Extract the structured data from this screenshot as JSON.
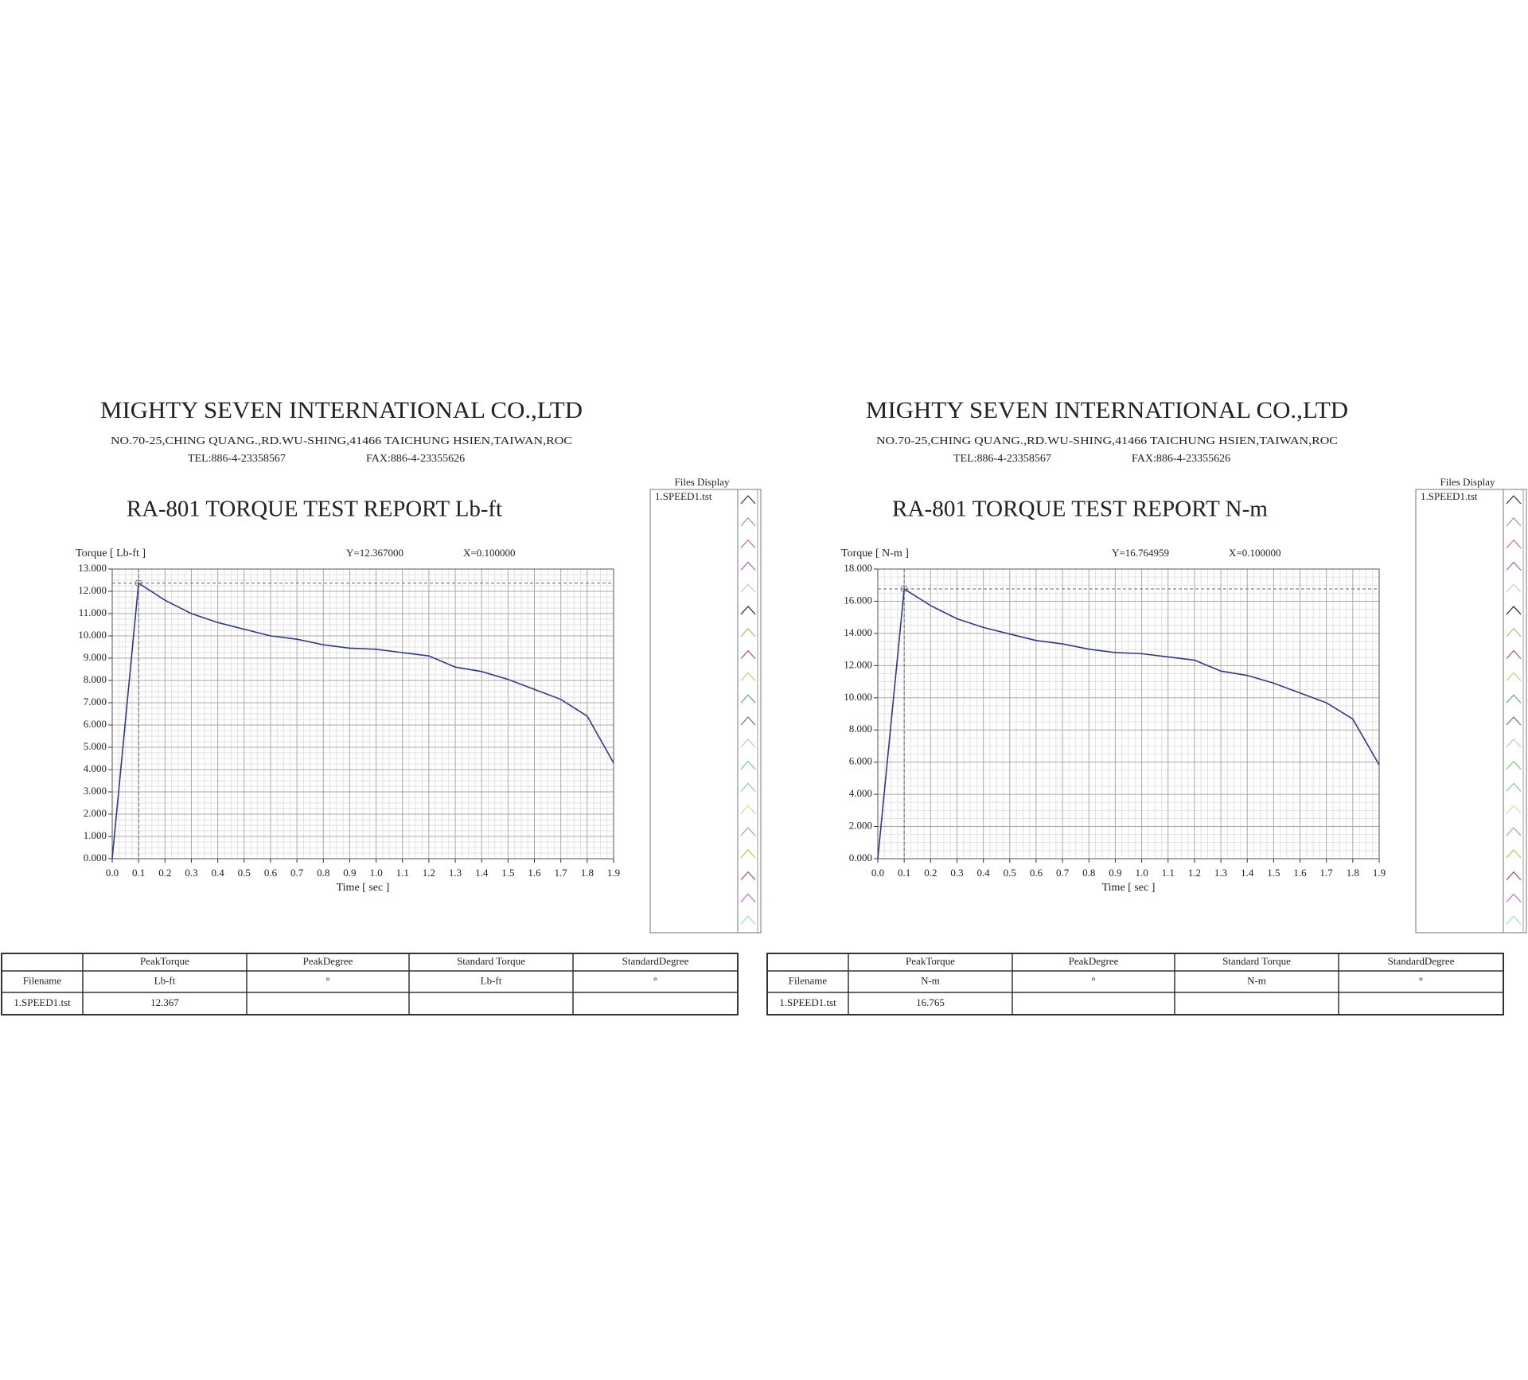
{
  "reports": [
    {
      "company": "MIGHTY SEVEN INTERNATIONAL CO.,LTD",
      "address": "NO.70-25,CHING QUANG.,RD.WU-SHING,41466 TAICHUNG HSIEN,TAIWAN,ROC",
      "tel": "TEL:886-4-23358567",
      "fax": "FAX:886-4-23355626",
      "files_display": "Files Display",
      "table": {
        "columns": [
          "PeakTorque",
          "PeakDegree",
          "Standard Torque",
          "StandardDegree"
        ],
        "row_header": "Filename",
        "units": [
          "Lb-ft",
          "°",
          "Lb-ft",
          "°"
        ],
        "rows": [
          {
            "file": "1.SPEED1.tst",
            "peak_torque": 12.367
          }
        ]
      }
    },
    {
      "company": "MIGHTY SEVEN INTERNATIONAL CO.,LTD",
      "address": "NO.70-25,CHING QUANG.,RD.WU-SHING,41466 TAICHUNG HSIEN,TAIWAN,ROC",
      "tel": "TEL:886-4-23358567",
      "fax": "FAX:886-4-23355626",
      "files_display": "Files Display",
      "table": {
        "columns": [
          "PeakTorque",
          "PeakDegree",
          "Standard Torque",
          "StandardDegree"
        ],
        "row_header": "Filename",
        "units": [
          "N-m",
          "°",
          "N-m",
          "°"
        ],
        "rows": [
          {
            "file": "1.SPEED1.tst",
            "peak_torque": 16.765
          }
        ]
      }
    }
  ],
  "chart_data": [
    {
      "type": "line",
      "title": "RA-801 TORQUE TEST REPORT Lb-ft",
      "y_label": "Torque [ Lb-ft ]",
      "x_label": "Time [ sec ]",
      "readout_y": "Y=12.367000",
      "readout_x": "X=0.100000",
      "x": [
        0,
        0.1,
        0.2,
        0.3,
        0.4,
        0.5,
        0.6,
        0.7,
        0.8,
        0.9,
        1.0,
        1.1,
        1.2,
        1.3,
        1.4,
        1.5,
        1.6,
        1.7,
        1.8,
        1.9
      ],
      "series": [
        {
          "name": "1.SPEED1.tst",
          "color": "#2b3a8c",
          "values": [
            0,
            12.367,
            11.6,
            11.0,
            10.6,
            10.3,
            10.0,
            9.85,
            9.6,
            9.45,
            9.4,
            9.25,
            9.1,
            8.6,
            8.4,
            8.05,
            7.6,
            7.15,
            6.4,
            4.3
          ]
        }
      ],
      "xlim": [
        0,
        1.9
      ],
      "ylim": [
        0,
        13
      ],
      "xticks": [
        {
          "value": 0,
          "label": "0.0"
        },
        0.1,
        0.2,
        0.3,
        0.4,
        0.5,
        0.6,
        0.7,
        0.8,
        0.9,
        {
          "value": 1,
          "label": "1.0"
        },
        1.1,
        1.2,
        1.3,
        1.4,
        1.5,
        1.6,
        1.7,
        1.8,
        1.9
      ],
      "yticks": [
        {
          "value": 0,
          "label": "0.000"
        },
        {
          "value": 1,
          "label": "1.000"
        },
        {
          "value": 2,
          "label": "2.000"
        },
        {
          "value": 3,
          "label": "3.000"
        },
        {
          "value": 4,
          "label": "4.000"
        },
        {
          "value": 5,
          "label": "5.000"
        },
        {
          "value": 6,
          "label": "6.000"
        },
        {
          "value": 7,
          "label": "7.000"
        },
        {
          "value": 8,
          "label": "8.000"
        },
        {
          "value": 9,
          "label": "9.000"
        },
        {
          "value": 10,
          "label": "10.000"
        },
        {
          "value": 11,
          "label": "11.000"
        },
        {
          "value": 12,
          "label": "12.000"
        },
        {
          "value": 13,
          "label": "13.000"
        }
      ],
      "grid": true
    },
    {
      "type": "line",
      "title": "RA-801 TORQUE TEST REPORT N-m",
      "y_label": "Torque [ N-m ]",
      "x_label": "Time [ sec ]",
      "readout_y": "Y=16.764959",
      "readout_x": "X=0.100000",
      "x": [
        0,
        0.1,
        0.2,
        0.3,
        0.4,
        0.5,
        0.6,
        0.7,
        0.8,
        0.9,
        1.0,
        1.1,
        1.2,
        1.3,
        1.4,
        1.5,
        1.6,
        1.7,
        1.8,
        1.9
      ],
      "series": [
        {
          "name": "1.SPEED1.tst",
          "color": "#2b3a8c",
          "values": [
            0,
            16.765,
            15.73,
            14.91,
            14.37,
            13.96,
            13.56,
            13.35,
            13.02,
            12.81,
            12.74,
            12.54,
            12.34,
            11.66,
            11.39,
            10.91,
            10.3,
            9.69,
            8.68,
            5.83
          ]
        }
      ],
      "xlim": [
        0,
        1.9
      ],
      "ylim": [
        0,
        18
      ],
      "xticks": [
        {
          "value": 0,
          "label": "0.0"
        },
        0.1,
        0.2,
        0.3,
        0.4,
        0.5,
        0.6,
        0.7,
        0.8,
        0.9,
        {
          "value": 1,
          "label": "1.0"
        },
        1.1,
        1.2,
        1.3,
        1.4,
        1.5,
        1.6,
        1.7,
        1.8,
        1.9
      ],
      "yticks": [
        {
          "value": 0,
          "label": "0.000"
        },
        {
          "value": 2,
          "label": "2.000"
        },
        {
          "value": 4,
          "label": "4.000"
        },
        {
          "value": 6,
          "label": "6.000"
        },
        {
          "value": 8,
          "label": "8.000"
        },
        {
          "value": 10,
          "label": "10.000"
        },
        {
          "value": 12,
          "label": "12.000"
        },
        {
          "value": 14,
          "label": "14.000"
        },
        {
          "value": 16,
          "label": "16.000"
        },
        {
          "value": 18,
          "label": "18.000"
        }
      ],
      "grid": true
    }
  ]
}
